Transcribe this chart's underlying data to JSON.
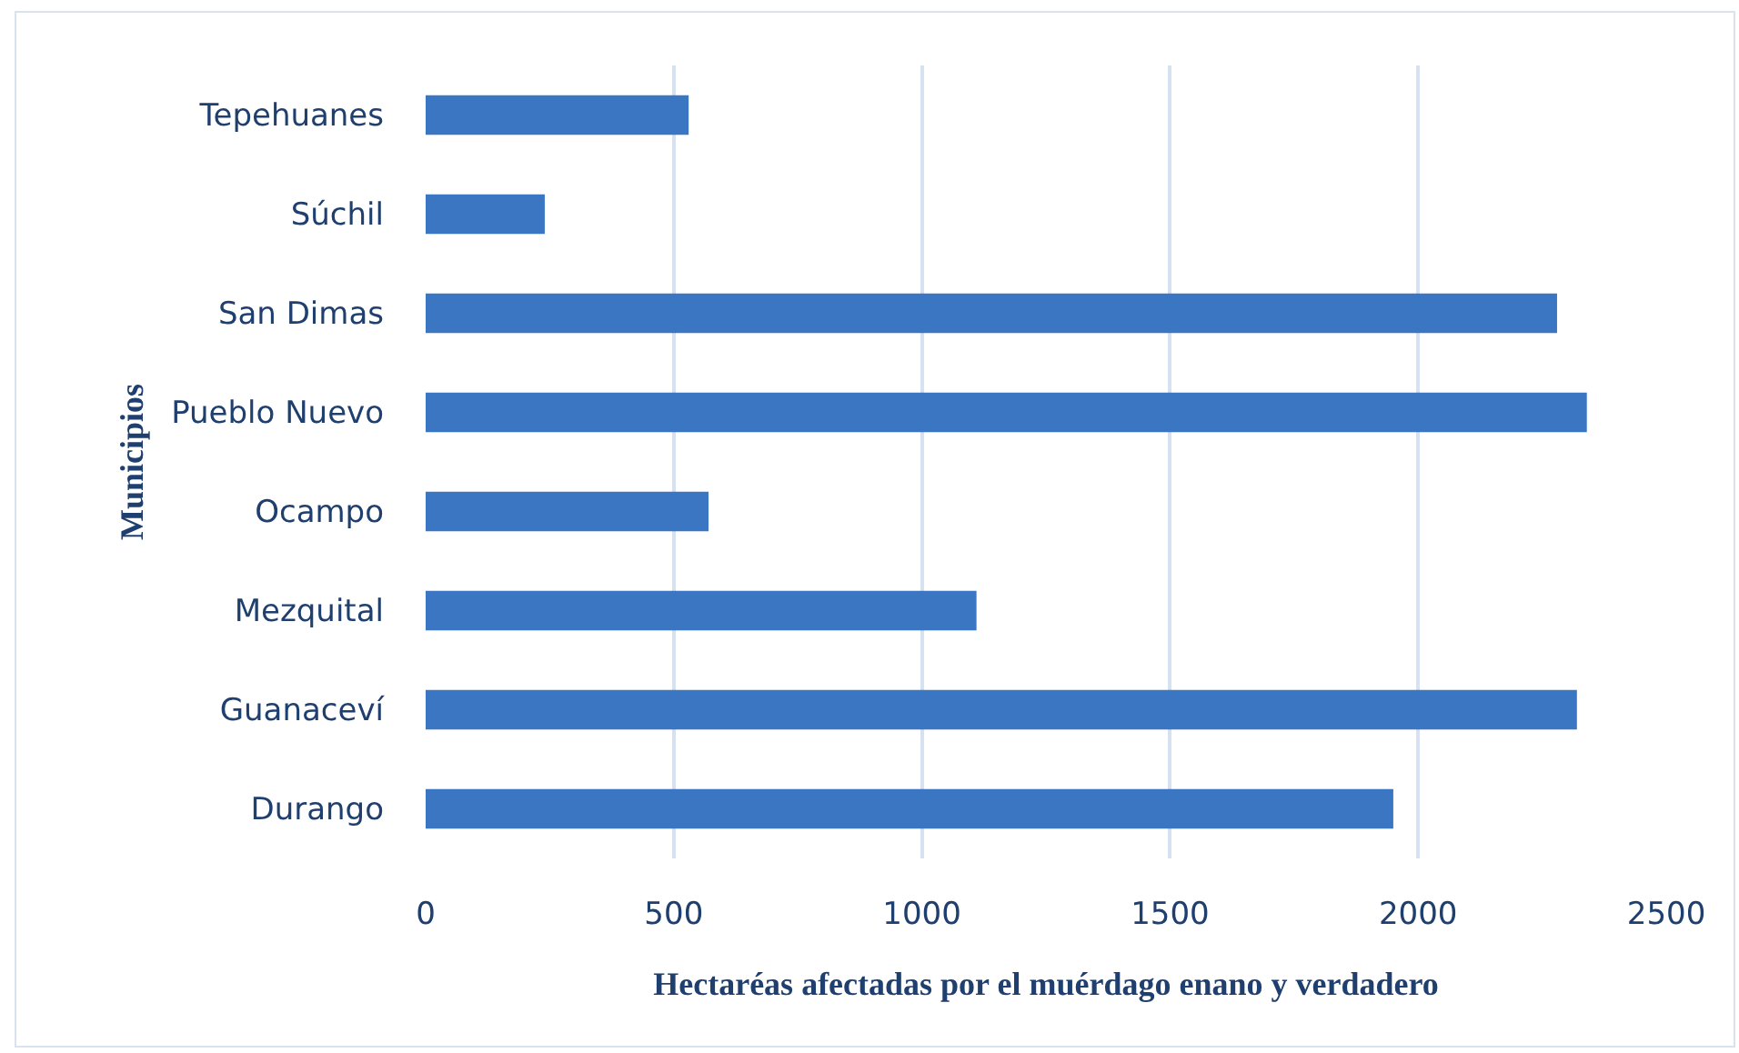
{
  "chart_data": {
    "type": "bar",
    "orientation": "horizontal",
    "xlabel": "Hectaréas afectadas por el muérdago enano y verdadero",
    "ylabel": "Municipios",
    "categories": [
      "Tepehuanes",
      "Súchil",
      "San Dimas",
      "Pueblo Nuevo",
      "Ocampo",
      "Mezquital",
      "Guanaceví",
      "Durango"
    ],
    "values": [
      530,
      240,
      2280,
      2340,
      570,
      1110,
      2320,
      1950
    ],
    "color": "#3a76c2",
    "xlim": [
      0,
      2500
    ],
    "xticks": [
      0,
      500,
      1000,
      1500,
      2000,
      2500
    ],
    "grid": "x",
    "legend": false
  }
}
